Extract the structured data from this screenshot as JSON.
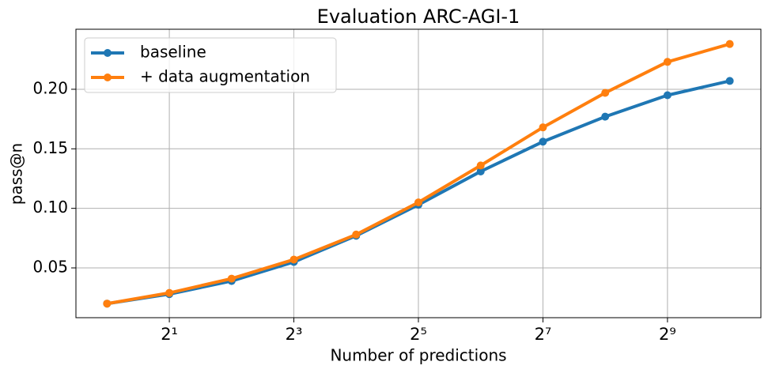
{
  "chart_data": {
    "type": "line",
    "title": "Evaluation ARC-AGI-1",
    "xlabel": "Number of predictions",
    "ylabel": "pass@n",
    "x": [
      1,
      2,
      4,
      8,
      16,
      32,
      64,
      128,
      256,
      512,
      1024
    ],
    "series": [
      {
        "name": "baseline",
        "color": "#1f77b4",
        "values": [
          0.02,
          0.028,
          0.039,
          0.055,
          0.077,
          0.103,
          0.131,
          0.156,
          0.177,
          0.195,
          0.207
        ]
      },
      {
        "name": "+ data augmentation",
        "color": "#ff7f0e",
        "values": [
          0.02,
          0.029,
          0.041,
          0.057,
          0.078,
          0.105,
          0.136,
          0.168,
          0.197,
          0.223,
          0.238
        ]
      }
    ],
    "xscale": "log",
    "xbase": 2,
    "xlim": [
      0.7071,
      1448.15
    ],
    "ylim": [
      0.0082,
      0.2504
    ],
    "xticks": [
      {
        "value": 2,
        "label": "2¹"
      },
      {
        "value": 8,
        "label": "2³"
      },
      {
        "value": 32,
        "label": "2⁵"
      },
      {
        "value": 128,
        "label": "2⁷"
      },
      {
        "value": 512,
        "label": "2⁹"
      }
    ],
    "yticks": [
      0.05,
      {
        "value": 0.1,
        "label": "0.10"
      },
      0.15,
      {
        "value": 0.2,
        "label": "0.20"
      }
    ],
    "grid": true,
    "legend": "upper-left"
  }
}
